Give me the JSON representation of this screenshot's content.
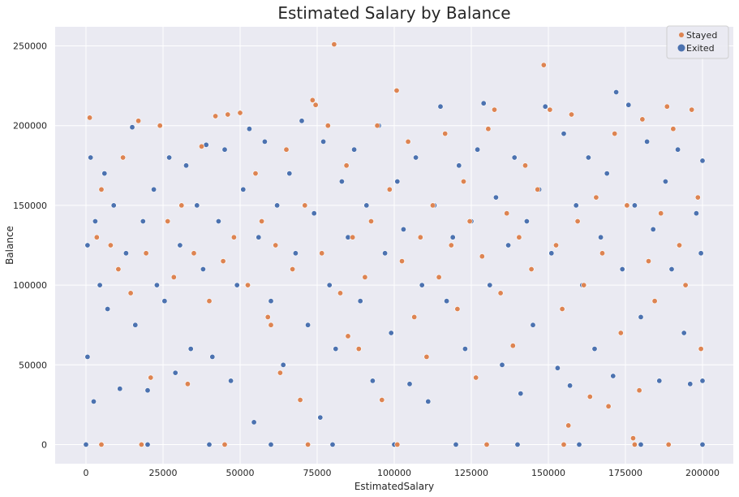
{
  "chart_data": {
    "type": "scatter",
    "title": "Estimated Salary by Balance",
    "xlabel": "EstimatedSalary",
    "ylabel": "Balance",
    "xlim": [
      -10000,
      210000
    ],
    "ylim": [
      -12000,
      262000
    ],
    "xticks": [
      0,
      25000,
      50000,
      75000,
      100000,
      125000,
      150000,
      175000,
      200000
    ],
    "yticks": [
      0,
      50000,
      100000,
      150000,
      200000,
      250000
    ],
    "xtick_labels": [
      "0",
      "25000",
      "50000",
      "75000",
      "100000",
      "125000",
      "150000",
      "175000",
      "200000"
    ],
    "ytick_labels": [
      "0",
      "50000",
      "100000",
      "150000",
      "200000",
      "250000"
    ],
    "grid": true,
    "legend_position": "top-right",
    "series": [
      {
        "name": "Stayed",
        "color": "#dd8452",
        "points": [
          [
            1200,
            205000
          ],
          [
            3500,
            130000
          ],
          [
            5000,
            160000
          ],
          [
            8000,
            125000
          ],
          [
            10500,
            110000
          ],
          [
            12000,
            180000
          ],
          [
            14500,
            95000
          ],
          [
            17000,
            203000
          ],
          [
            19500,
            120000
          ],
          [
            21000,
            42000
          ],
          [
            24000,
            200000
          ],
          [
            26500,
            140000
          ],
          [
            28500,
            105000
          ],
          [
            31000,
            150000
          ],
          [
            33000,
            38000
          ],
          [
            35000,
            120000
          ],
          [
            37500,
            187000
          ],
          [
            40000,
            90000
          ],
          [
            42000,
            206000
          ],
          [
            44500,
            115000
          ],
          [
            46000,
            207000
          ],
          [
            48000,
            130000
          ],
          [
            50000,
            208000
          ],
          [
            52500,
            100000
          ],
          [
            55000,
            170000
          ],
          [
            57000,
            140000
          ],
          [
            59000,
            80000
          ],
          [
            61500,
            125000
          ],
          [
            63000,
            45000
          ],
          [
            65000,
            185000
          ],
          [
            67000,
            110000
          ],
          [
            69500,
            28000
          ],
          [
            71000,
            150000
          ],
          [
            73500,
            216000
          ],
          [
            74500,
            213000
          ],
          [
            76500,
            120000
          ],
          [
            78500,
            200000
          ],
          [
            80500,
            251000
          ],
          [
            82500,
            95000
          ],
          [
            84500,
            175000
          ],
          [
            86500,
            130000
          ],
          [
            88500,
            60000
          ],
          [
            90500,
            105000
          ],
          [
            92500,
            140000
          ],
          [
            94500,
            200000
          ],
          [
            96000,
            28000
          ],
          [
            98500,
            160000
          ],
          [
            100800,
            222000
          ],
          [
            102500,
            115000
          ],
          [
            104500,
            190000
          ],
          [
            106500,
            80000
          ],
          [
            108500,
            130000
          ],
          [
            110500,
            55000
          ],
          [
            112500,
            150000
          ],
          [
            114500,
            105000
          ],
          [
            116500,
            195000
          ],
          [
            118500,
            125000
          ],
          [
            120500,
            85000
          ],
          [
            122500,
            165000
          ],
          [
            124500,
            140000
          ],
          [
            126500,
            42000
          ],
          [
            128500,
            118000
          ],
          [
            130500,
            198000
          ],
          [
            132500,
            210000
          ],
          [
            134500,
            95000
          ],
          [
            136500,
            145000
          ],
          [
            138500,
            62000
          ],
          [
            140500,
            130000
          ],
          [
            142500,
            175000
          ],
          [
            144500,
            110000
          ],
          [
            146500,
            160000
          ],
          [
            148500,
            238000
          ],
          [
            150500,
            210000
          ],
          [
            152500,
            125000
          ],
          [
            154500,
            85000
          ],
          [
            156500,
            12000
          ],
          [
            157500,
            207000
          ],
          [
            159500,
            140000
          ],
          [
            161500,
            100000
          ],
          [
            163500,
            30000
          ],
          [
            165500,
            155000
          ],
          [
            167500,
            120000
          ],
          [
            169500,
            24000
          ],
          [
            171500,
            195000
          ],
          [
            173500,
            70000
          ],
          [
            175500,
            150000
          ],
          [
            177500,
            4000
          ],
          [
            179500,
            34000
          ],
          [
            180500,
            204000
          ],
          [
            182500,
            115000
          ],
          [
            184500,
            90000
          ],
          [
            186500,
            145000
          ],
          [
            188500,
            212000
          ],
          [
            190500,
            198000
          ],
          [
            192500,
            125000
          ],
          [
            194500,
            100000
          ],
          [
            196500,
            210000
          ],
          [
            198500,
            155000
          ],
          [
            199500,
            60000
          ],
          [
            45000,
            0
          ],
          [
            18000,
            0
          ],
          [
            72000,
            0
          ],
          [
            130000,
            0
          ],
          [
            155000,
            0
          ],
          [
            178000,
            0
          ],
          [
            101000,
            0
          ],
          [
            5000,
            0
          ],
          [
            189000,
            0
          ],
          [
            60000,
            75000
          ],
          [
            85000,
            68000
          ]
        ]
      },
      {
        "name": "Exited",
        "color": "#4c72b0",
        "points": [
          [
            500,
            55000
          ],
          [
            1500,
            180000
          ],
          [
            2500,
            27000
          ],
          [
            3000,
            140000
          ],
          [
            4500,
            100000
          ],
          [
            6000,
            170000
          ],
          [
            7000,
            85000
          ],
          [
            9000,
            150000
          ],
          [
            11000,
            35000
          ],
          [
            13000,
            120000
          ],
          [
            15000,
            199000
          ],
          [
            16000,
            75000
          ],
          [
            18500,
            140000
          ],
          [
            20000,
            34000
          ],
          [
            22000,
            160000
          ],
          [
            23000,
            100000
          ],
          [
            25500,
            90000
          ],
          [
            27000,
            180000
          ],
          [
            29000,
            45000
          ],
          [
            30500,
            125000
          ],
          [
            32500,
            175000
          ],
          [
            34000,
            60000
          ],
          [
            36000,
            150000
          ],
          [
            38000,
            110000
          ],
          [
            39000,
            188000
          ],
          [
            41000,
            55000
          ],
          [
            43000,
            140000
          ],
          [
            45000,
            185000
          ],
          [
            47000,
            40000
          ],
          [
            49000,
            100000
          ],
          [
            51000,
            160000
          ],
          [
            53000,
            198000
          ],
          [
            54500,
            14000
          ],
          [
            56000,
            130000
          ],
          [
            58000,
            190000
          ],
          [
            60000,
            90000
          ],
          [
            62000,
            150000
          ],
          [
            64000,
            50000
          ],
          [
            66000,
            170000
          ],
          [
            68000,
            120000
          ],
          [
            70000,
            203000
          ],
          [
            72000,
            75000
          ],
          [
            74000,
            145000
          ],
          [
            76000,
            17000
          ],
          [
            77000,
            190000
          ],
          [
            79000,
            100000
          ],
          [
            81000,
            60000
          ],
          [
            83000,
            165000
          ],
          [
            85000,
            130000
          ],
          [
            87000,
            185000
          ],
          [
            89000,
            90000
          ],
          [
            91000,
            150000
          ],
          [
            93000,
            40000
          ],
          [
            95000,
            200000
          ],
          [
            97000,
            120000
          ],
          [
            99000,
            70000
          ],
          [
            101000,
            165000
          ],
          [
            103000,
            135000
          ],
          [
            105000,
            38000
          ],
          [
            107000,
            180000
          ],
          [
            109000,
            100000
          ],
          [
            111000,
            27000
          ],
          [
            113000,
            150000
          ],
          [
            115000,
            212000
          ],
          [
            117000,
            90000
          ],
          [
            119000,
            130000
          ],
          [
            121000,
            175000
          ],
          [
            123000,
            60000
          ],
          [
            125000,
            140000
          ],
          [
            127000,
            185000
          ],
          [
            129000,
            214000
          ],
          [
            131000,
            100000
          ],
          [
            133000,
            155000
          ],
          [
            135000,
            50000
          ],
          [
            137000,
            125000
          ],
          [
            139000,
            180000
          ],
          [
            141000,
            32000
          ],
          [
            143000,
            140000
          ],
          [
            145000,
            75000
          ],
          [
            147000,
            160000
          ],
          [
            149000,
            212000
          ],
          [
            151000,
            120000
          ],
          [
            153000,
            48000
          ],
          [
            155000,
            195000
          ],
          [
            157000,
            37000
          ],
          [
            159000,
            150000
          ],
          [
            161000,
            100000
          ],
          [
            163000,
            180000
          ],
          [
            165000,
            60000
          ],
          [
            167000,
            130000
          ],
          [
            169000,
            170000
          ],
          [
            171000,
            43000
          ],
          [
            172000,
            221000
          ],
          [
            174000,
            110000
          ],
          [
            176000,
            213000
          ],
          [
            178000,
            150000
          ],
          [
            180000,
            80000
          ],
          [
            182000,
            190000
          ],
          [
            184000,
            135000
          ],
          [
            186000,
            40000
          ],
          [
            188000,
            165000
          ],
          [
            190000,
            110000
          ],
          [
            192000,
            185000
          ],
          [
            194000,
            70000
          ],
          [
            196000,
            38000
          ],
          [
            198000,
            145000
          ],
          [
            199500,
            120000
          ],
          [
            200000,
            40000
          ],
          [
            200000,
            178000
          ],
          [
            500,
            125000
          ],
          [
            0,
            0
          ],
          [
            20000,
            0
          ],
          [
            40000,
            0
          ],
          [
            60000,
            0
          ],
          [
            80000,
            0
          ],
          [
            100000,
            0
          ],
          [
            120000,
            0
          ],
          [
            140000,
            0
          ],
          [
            160000,
            0
          ],
          [
            180000,
            0
          ],
          [
            200000,
            0
          ]
        ]
      }
    ]
  }
}
